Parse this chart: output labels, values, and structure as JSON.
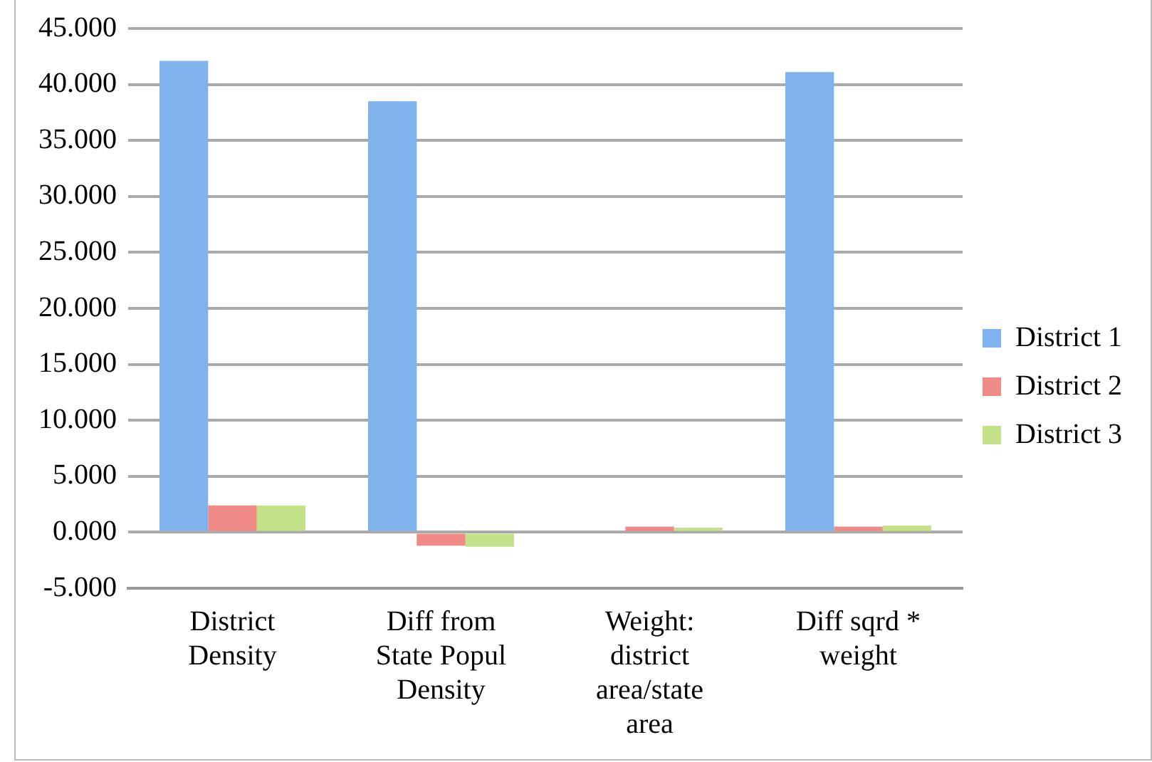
{
  "chart_data": {
    "type": "bar",
    "categories": [
      "District Density",
      "Diff from State Popul Density",
      "Weight: district area/state area",
      "Diff sqrd * weight"
    ],
    "series": [
      {
        "name": "District 1",
        "color": "#80b2ee",
        "values": [
          42.1,
          38.5,
          0.0,
          41.1
        ]
      },
      {
        "name": "District 2",
        "color": "#ef8a86",
        "values": [
          2.4,
          -1.2,
          0.5,
          0.5
        ]
      },
      {
        "name": "District 3",
        "color": "#c4e287",
        "values": [
          2.4,
          -1.3,
          0.4,
          0.6
        ]
      }
    ],
    "ylim": [
      -5,
      45
    ],
    "yticks": [
      {
        "value": -5,
        "label": "-5.000"
      },
      {
        "value": 0,
        "label": "0.000"
      },
      {
        "value": 5,
        "label": "5.000"
      },
      {
        "value": 10,
        "label": "10.000"
      },
      {
        "value": 15,
        "label": "15.000"
      },
      {
        "value": 20,
        "label": "20.000"
      },
      {
        "value": 25,
        "label": "25.000"
      },
      {
        "value": 30,
        "label": "30.000"
      },
      {
        "value": 35,
        "label": "35.000"
      },
      {
        "value": 40,
        "label": "40.000"
      },
      {
        "value": 45,
        "label": "45.000"
      }
    ],
    "grid": "y",
    "legend": "right"
  }
}
